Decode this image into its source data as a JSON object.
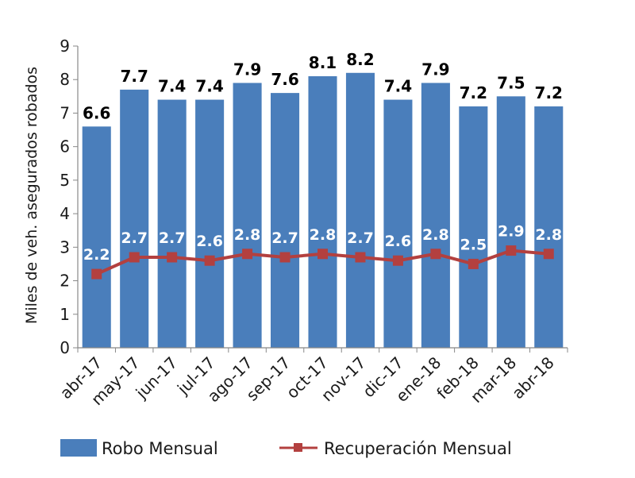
{
  "chart_data": {
    "type": "bar",
    "categories": [
      "abr-17",
      "may-17",
      "jun-17",
      "jul-17",
      "ago-17",
      "sep-17",
      "oct-17",
      "nov-17",
      "dic-17",
      "ene-18",
      "feb-18",
      "mar-18",
      "abr-18"
    ],
    "ylabel": "Miles de veh. asegurados robados",
    "ylim": [
      0,
      9
    ],
    "yticks": [
      0,
      1,
      2,
      3,
      4,
      5,
      6,
      7,
      8,
      9
    ],
    "grid": false,
    "legend_position": "bottom",
    "series": [
      {
        "name": "Robo Mensual",
        "type": "bar",
        "color": "#4a7ebb",
        "values": [
          6.6,
          7.7,
          7.4,
          7.4,
          7.9,
          7.6,
          8.1,
          8.2,
          7.4,
          7.9,
          7.2,
          7.5,
          7.2
        ],
        "labels": [
          "6.6",
          "7.7",
          "7.4",
          "7.4",
          "7.9",
          "7.6",
          "8.1",
          "8.2",
          "7.4",
          "7.9",
          "7.2",
          "7.5",
          "7.2"
        ]
      },
      {
        "name": "Recuperación Mensual",
        "type": "line",
        "color": "#b3403f",
        "values": [
          2.2,
          2.7,
          2.7,
          2.6,
          2.8,
          2.7,
          2.8,
          2.7,
          2.6,
          2.8,
          2.5,
          2.9,
          2.8
        ],
        "labels": [
          "2.2",
          "2.7",
          "2.7",
          "2.6",
          "2.8",
          "2.7",
          "2.8",
          "2.7",
          "2.6",
          "2.8",
          "2.5",
          "2.9",
          "2.8"
        ]
      }
    ]
  }
}
